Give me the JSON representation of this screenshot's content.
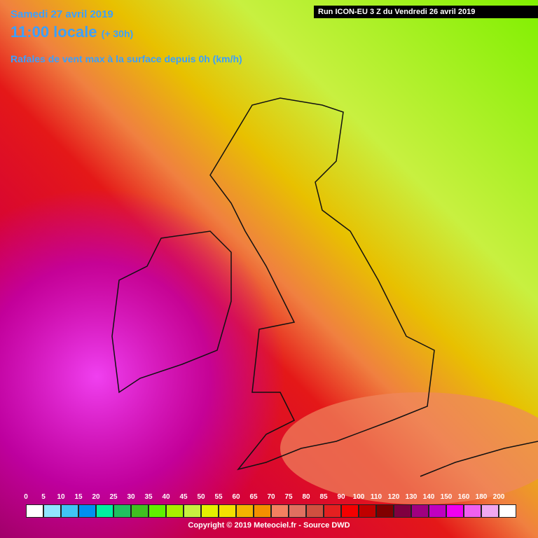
{
  "header": {
    "date": "Samedi 27 avril 2019",
    "time": "11:00 locale",
    "lead": "(+ 30h)",
    "field": "Rafales de vent max à la surface depuis 0h (km/h)",
    "run": "Run ICON-EU 3 Z du Vendredi 26 avril 2019"
  },
  "legend": {
    "labels": [
      "0",
      "5",
      "10",
      "15",
      "20",
      "25",
      "30",
      "35",
      "40",
      "45",
      "50",
      "55",
      "60",
      "65",
      "70",
      "75",
      "80",
      "85",
      "90",
      "100",
      "110",
      "120",
      "130",
      "140",
      "150",
      "160",
      "180",
      "200"
    ],
    "colors": [
      "#ffffff",
      "#90e4ff",
      "#40c4f4",
      "#0090f0",
      "#00f0a0",
      "#20c060",
      "#40c020",
      "#60f000",
      "#a8f000",
      "#c8f040",
      "#e4f000",
      "#f4e000",
      "#f4b400",
      "#f49000",
      "#f48060",
      "#e07060",
      "#d05040",
      "#e42020",
      "#f40000",
      "#c00000",
      "#800000",
      "#800040",
      "#a00080",
      "#c000c0",
      "#f000f0",
      "#f060f0",
      "#f0a8f0",
      "#ffffff"
    ]
  },
  "footer": {
    "copyright": "Copyright © 2019 Meteociel.fr - Source DWD"
  }
}
